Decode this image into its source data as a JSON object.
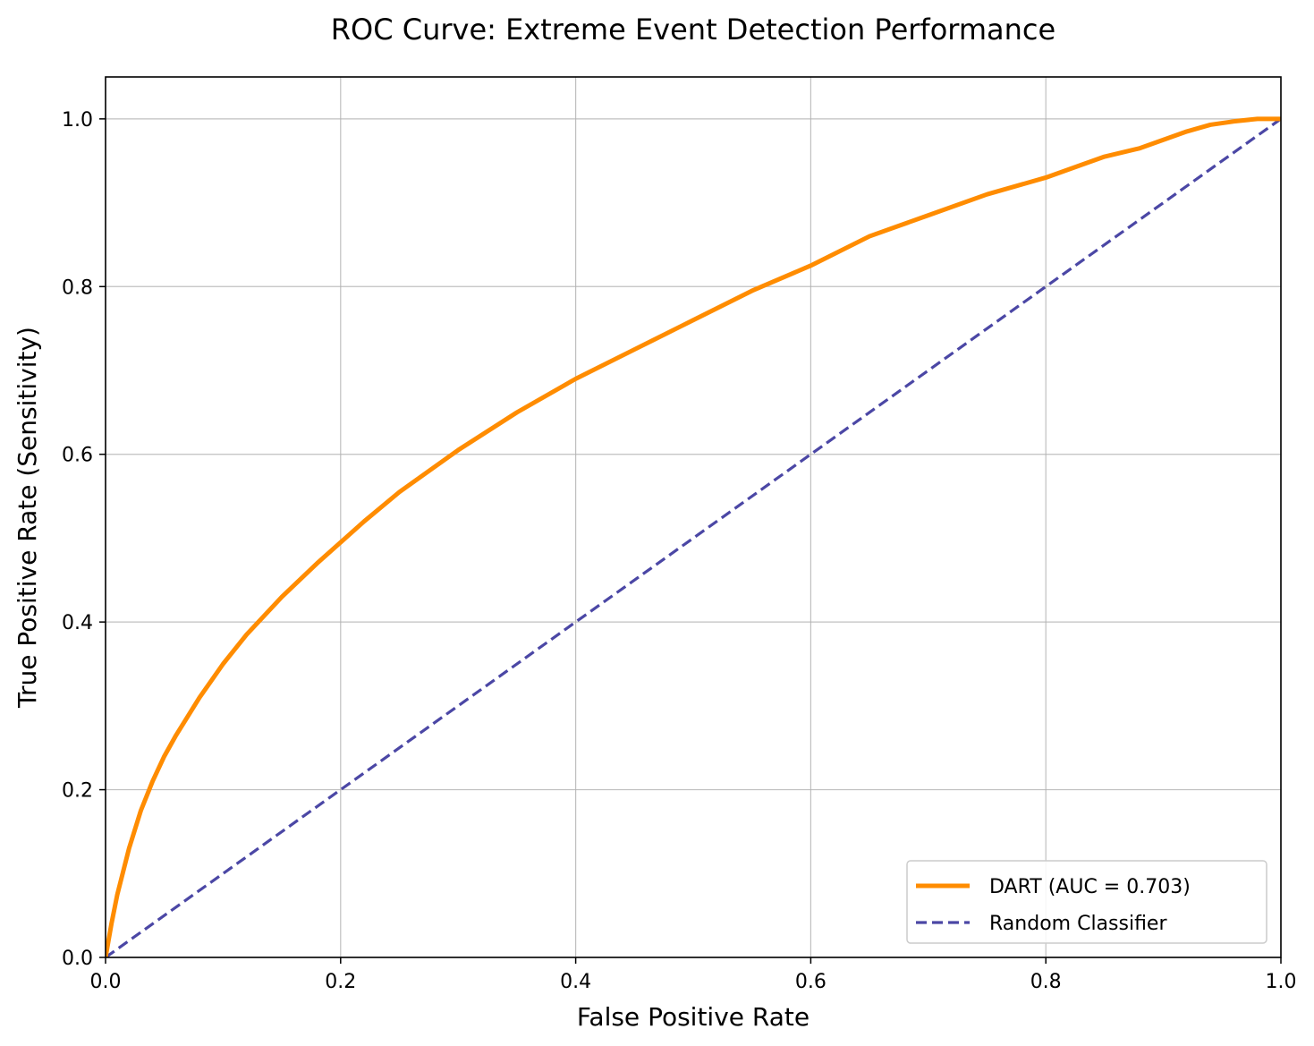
{
  "chart_data": {
    "type": "line",
    "title": "ROC Curve: Extreme Event Detection Performance",
    "xlabel": "False Positive Rate",
    "ylabel": "True Positive Rate (Sensitivity)",
    "xlim": [
      0.0,
      1.0
    ],
    "ylim": [
      0.0,
      1.05
    ],
    "xticks": [
      "0.0",
      "0.2",
      "0.4",
      "0.6",
      "0.8",
      "1.0"
    ],
    "yticks": [
      "0.0",
      "0.2",
      "0.4",
      "0.6",
      "0.8",
      "1.0"
    ],
    "grid": true,
    "legend_position": "lower-right",
    "series": [
      {
        "name": "DART (AUC = 0.703)",
        "style": "solid",
        "color": "#ff8c00",
        "x": [
          0.0,
          0.005,
          0.01,
          0.02,
          0.03,
          0.04,
          0.05,
          0.06,
          0.08,
          0.1,
          0.12,
          0.15,
          0.18,
          0.2,
          0.22,
          0.25,
          0.28,
          0.3,
          0.35,
          0.4,
          0.45,
          0.5,
          0.55,
          0.6,
          0.65,
          0.7,
          0.75,
          0.8,
          0.83,
          0.85,
          0.88,
          0.9,
          0.92,
          0.94,
          0.96,
          0.98,
          1.0
        ],
        "y": [
          0.0,
          0.04,
          0.075,
          0.13,
          0.175,
          0.21,
          0.24,
          0.265,
          0.31,
          0.35,
          0.385,
          0.43,
          0.47,
          0.495,
          0.52,
          0.555,
          0.585,
          0.605,
          0.65,
          0.69,
          0.725,
          0.76,
          0.795,
          0.825,
          0.86,
          0.885,
          0.91,
          0.93,
          0.945,
          0.955,
          0.965,
          0.975,
          0.985,
          0.993,
          0.997,
          1.0,
          1.0
        ]
      },
      {
        "name": "Random Classifier",
        "style": "dashed",
        "color": "#4b47a5",
        "x": [
          0.0,
          1.0
        ],
        "y": [
          0.0,
          1.0
        ]
      }
    ]
  }
}
